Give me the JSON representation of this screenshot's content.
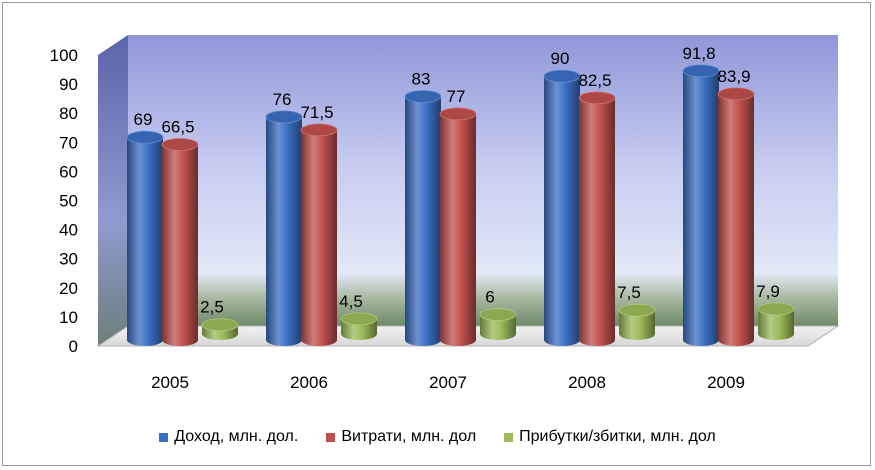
{
  "chart_data": {
    "type": "bar",
    "categories": [
      "2005",
      "2006",
      "2007",
      "2008",
      "2009"
    ],
    "series": [
      {
        "name": "Доход, млн. дол.",
        "values": [
          69,
          76,
          83,
          90,
          91.8
        ],
        "labels": [
          "69",
          "76",
          "83",
          "90",
          "91,8"
        ],
        "color": "#3b6fc4"
      },
      {
        "name": "Витрати, млн. дол",
        "values": [
          66.5,
          71.5,
          77,
          82.5,
          83.9
        ],
        "labels": [
          "66,5",
          "71,5",
          "77",
          "82,5",
          "83,9"
        ],
        "color": "#c0504d"
      },
      {
        "name": "Прибутки/збитки, млн. дол",
        "values": [
          2.5,
          4.5,
          6,
          7.5,
          7.9
        ],
        "labels": [
          "2,5",
          "4,5",
          "6",
          "7,5",
          "7,9"
        ],
        "color": "#9bbb59"
      }
    ],
    "ylim": [
      0,
      100
    ],
    "yticks": [
      "0",
      "10",
      "20",
      "30",
      "40",
      "50",
      "60",
      "70",
      "80",
      "90",
      "100"
    ],
    "grid": false,
    "legend_position": "bottom",
    "style": "3d-cylinder"
  }
}
